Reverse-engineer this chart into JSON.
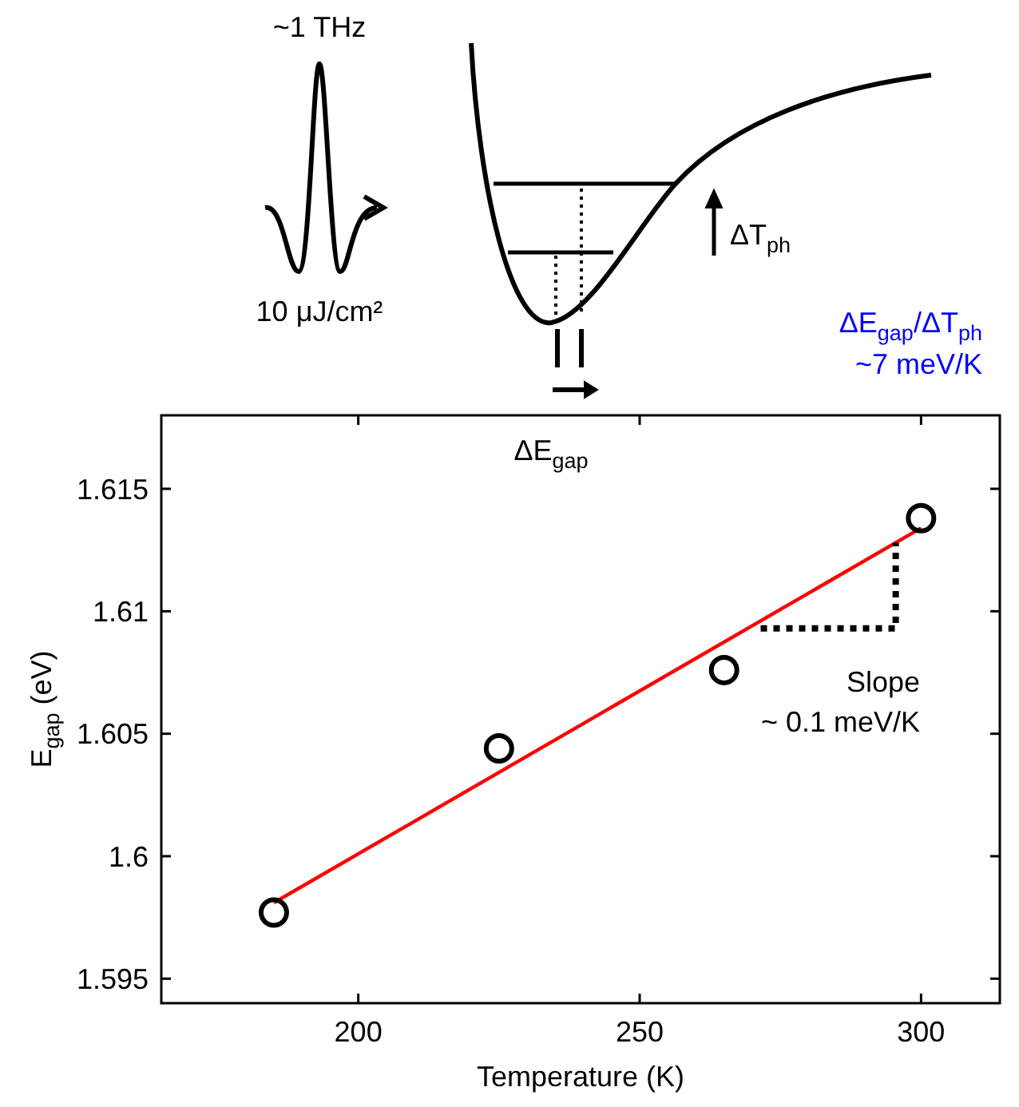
{
  "chart_data": {
    "type": "scatter",
    "xlabel": "Temperature (K)",
    "ylabel": "E$_{gap}$ (eV)",
    "xlim": [
      165,
      314
    ],
    "ylim": [
      1.594,
      1.618
    ],
    "xticks": [
      200,
      250,
      300
    ],
    "yticks": [
      1.595,
      1.6,
      1.605,
      1.61,
      1.615
    ],
    "grid": false,
    "series": [
      {
        "color": "#000000",
        "x": [
          185,
          225,
          265,
          300
        ],
        "values": [
          1.5977,
          1.6044,
          1.6076,
          1.6138
        ],
        "marker": "circle"
      },
      {
        "type": "line",
        "color": "#ff0000",
        "x": [
          185,
          300
        ],
        "values": [
          1.5981,
          1.6134
        ],
        "line_style": "solid",
        "marker": "none"
      },
      {
        "type": "line",
        "color": "#000000",
        "x": [
          271.5,
          295.5,
          295.5
        ],
        "values": [
          1.6093,
          1.6093,
          1.6128
        ],
        "line_style": "dotted",
        "marker": "none"
      }
    ],
    "annotations": [
      "~1 THz",
      "10 μJ/cm²",
      "ΔT$_{ph}$",
      "ΔE$_{gap}$/ΔT$_{ph}$",
      "~7 meV/K",
      "ΔE$_{gap}$",
      "Slope",
      "~ 0.1 meV/K"
    ]
  }
}
